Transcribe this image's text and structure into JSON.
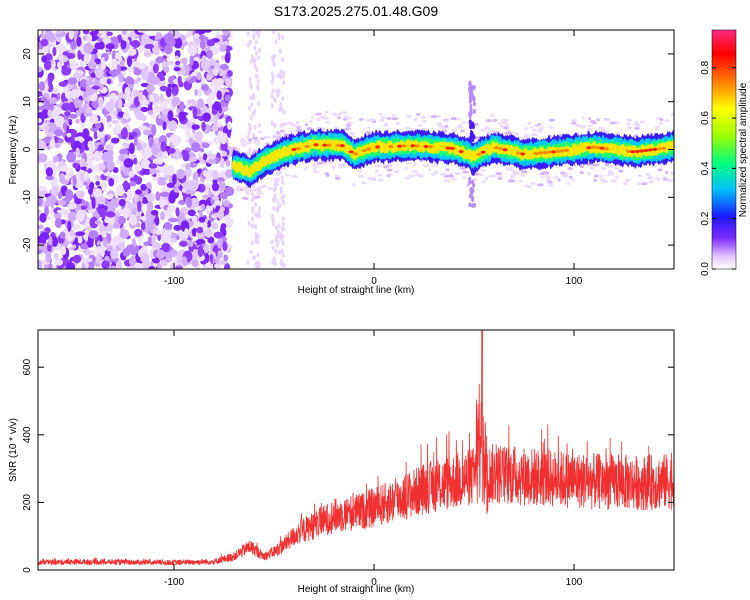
{
  "figure": {
    "title": "S173.2025.275.01.48.G09"
  },
  "chart_data": [
    {
      "type": "heatmap",
      "xlabel": "Height of straight line (km)",
      "ylabel": "Frequency (Hz)",
      "xlim": [
        -168,
        150
      ],
      "ylim": [
        -25,
        25
      ],
      "xticks": [
        -100,
        0,
        100
      ],
      "yticks": [
        -20,
        -10,
        0,
        10,
        20
      ],
      "colorbar": {
        "label": "Normalized spectral amplitude",
        "range": [
          0,
          0.95
        ],
        "ticks": [
          0,
          0.2,
          0.4,
          0.6,
          0.8
        ],
        "tick_labels": [
          "0.0",
          "0.2",
          "0.4",
          "0.6",
          "0.8"
        ]
      },
      "ridge": [
        {
          "x": -70,
          "f": -3.5
        },
        {
          "x": -62,
          "f": -4.5
        },
        {
          "x": -55,
          "f": -2.5
        },
        {
          "x": -45,
          "f": -0.5
        },
        {
          "x": -30,
          "f": 1.0
        },
        {
          "x": -15,
          "f": 0.8
        },
        {
          "x": -10,
          "f": -1.0
        },
        {
          "x": 0,
          "f": 0.5
        },
        {
          "x": 20,
          "f": 0.8
        },
        {
          "x": 40,
          "f": 0.2
        },
        {
          "x": 50,
          "f": -1.5
        },
        {
          "x": 60,
          "f": 0.5
        },
        {
          "x": 75,
          "f": -1.0
        },
        {
          "x": 90,
          "f": -0.5
        },
        {
          "x": 110,
          "f": 0.5
        },
        {
          "x": 130,
          "f": -0.5
        },
        {
          "x": 150,
          "f": 0.5
        }
      ]
    },
    {
      "type": "line",
      "xlabel": "Height of straight line (km)",
      "ylabel": "SNR (10 * v/v)",
      "xlim": [
        -168,
        150
      ],
      "ylim": [
        0,
        710
      ],
      "xticks": [
        -100,
        0,
        100
      ],
      "yticks": [
        0,
        200,
        400,
        600
      ],
      "series": [
        {
          "color": "#f03030",
          "trend": [
            {
              "x": -168,
              "y": 22
            },
            {
              "x": -150,
              "y": 24
            },
            {
              "x": -100,
              "y": 22
            },
            {
              "x": -80,
              "y": 25
            },
            {
              "x": -70,
              "y": 40
            },
            {
              "x": -62,
              "y": 70
            },
            {
              "x": -55,
              "y": 40
            },
            {
              "x": -48,
              "y": 60
            },
            {
              "x": -38,
              "y": 110
            },
            {
              "x": -20,
              "y": 160
            },
            {
              "x": -5,
              "y": 175
            },
            {
              "x": 10,
              "y": 205
            },
            {
              "x": 25,
              "y": 240
            },
            {
              "x": 40,
              "y": 262
            },
            {
              "x": 55,
              "y": 285
            },
            {
              "x": 70,
              "y": 280
            },
            {
              "x": 90,
              "y": 270
            },
            {
              "x": 110,
              "y": 262
            },
            {
              "x": 130,
              "y": 258
            },
            {
              "x": 150,
              "y": 262
            }
          ],
          "peak": {
            "x": 54,
            "y": 710
          }
        }
      ]
    }
  ]
}
